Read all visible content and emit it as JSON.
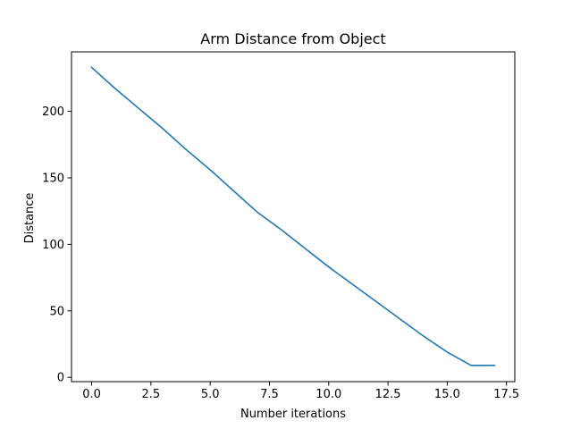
{
  "chart_data": {
    "type": "line",
    "title": "Arm Distance from Object",
    "xlabel": "Number iterations",
    "ylabel": "Distance",
    "xlim": [
      -0.85,
      17.85
    ],
    "ylim": [
      -3.2,
      244.7
    ],
    "xticks": [
      0,
      2.5,
      5,
      7.5,
      10,
      12.5,
      15,
      17.5
    ],
    "xtick_labels": [
      "0.0",
      "2.5",
      "5.0",
      "7.5",
      "10.0",
      "12.5",
      "15.0",
      "17.5"
    ],
    "yticks": [
      0,
      50,
      100,
      150,
      200
    ],
    "ytick_labels": [
      "0",
      "50",
      "100",
      "150",
      "200"
    ],
    "grid": false,
    "series": [
      {
        "color": "#1f77b4",
        "x": [
          0,
          1,
          2,
          3,
          4,
          5,
          6,
          7,
          8,
          9,
          10,
          11,
          12,
          13,
          14,
          15,
          16,
          17
        ],
        "values": [
          233,
          217,
          202,
          187,
          171,
          156,
          140,
          124,
          111,
          97,
          83,
          70,
          57,
          44,
          31,
          19,
          9,
          9
        ]
      }
    ]
  }
}
